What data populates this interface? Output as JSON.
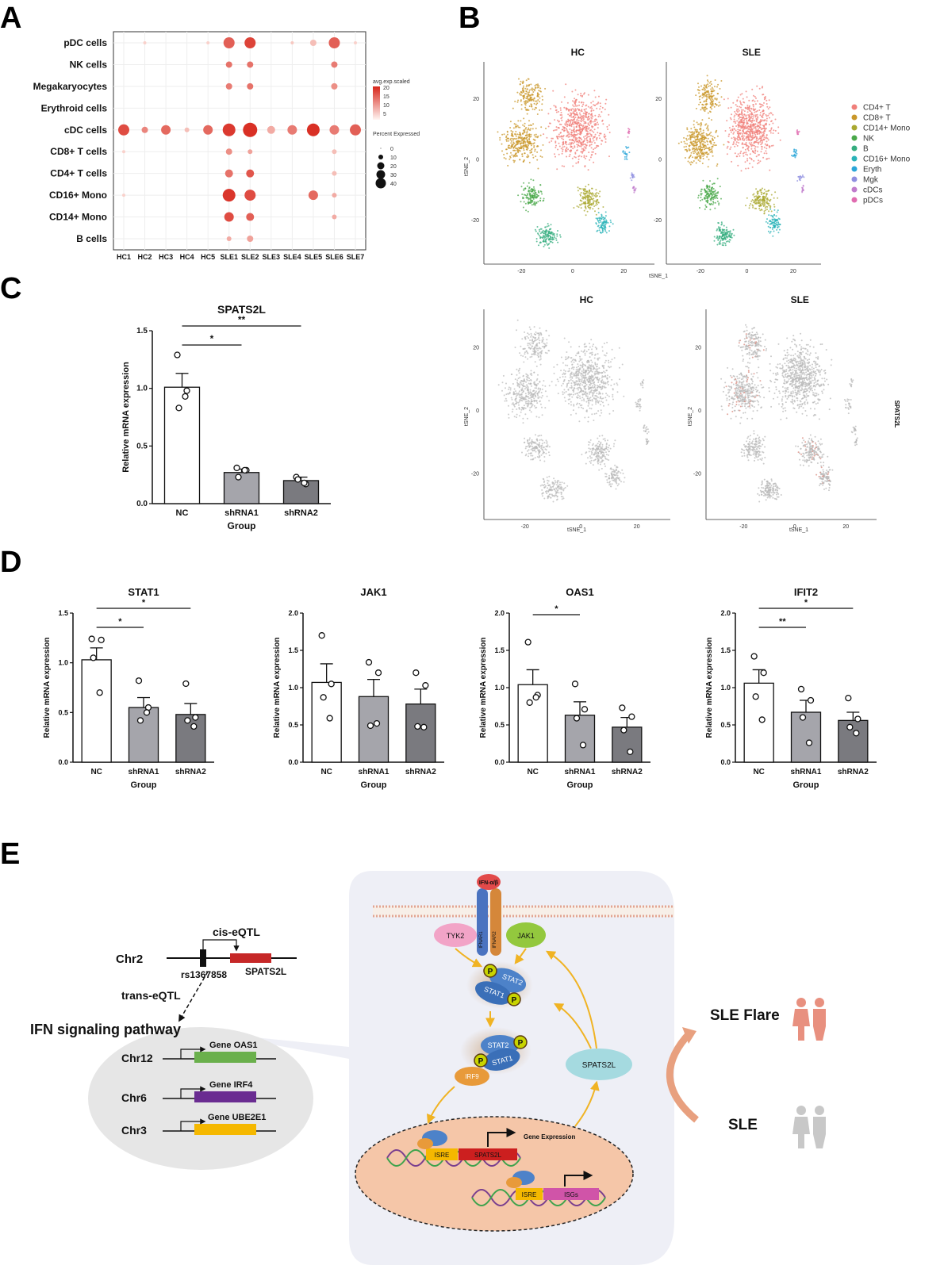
{
  "panels": {
    "a": "A",
    "b": "B",
    "c": "C",
    "d": "D",
    "e": "E"
  },
  "panelA": {
    "rows": [
      "pDC cells",
      "NK cells",
      "Megakaryocytes",
      "Erythroid cells",
      "cDC cells",
      "CD8+ T cells",
      "CD4+ T cells",
      "CD16+ Mono",
      "CD14+ Mono",
      "B cells"
    ],
    "cols": [
      "HC1",
      "HC2",
      "HC3",
      "HC4",
      "HC5",
      "SLE1",
      "SLE2",
      "SLE3",
      "SLE4",
      "SLE5",
      "SLE6",
      "SLE7"
    ],
    "legend_color_title": "avg.exp.scaled",
    "legend_color_ticks": [
      "20",
      "15",
      "10",
      "5"
    ],
    "legend_size_title": "Percent Expressed",
    "legend_size_ticks": [
      "0",
      "10",
      "20",
      "30",
      "40"
    ],
    "colors": {
      "low": "#fde4de",
      "high": "#d7261b"
    }
  },
  "panelB": {
    "top_titles": [
      "HC",
      "SLE"
    ],
    "bottom_titles": [
      "HC",
      "SLE"
    ],
    "xlabel": "tSNE_1",
    "ylabel": "tSNE_2",
    "xticks": [
      "-20",
      "0",
      "20"
    ],
    "yticks": [
      "20",
      "0",
      "-20"
    ],
    "gene_label": "SPATS2L",
    "legend": [
      {
        "name": "CD4+ T",
        "color": "#f07f7a"
      },
      {
        "name": "CD8+ T",
        "color": "#c9972a"
      },
      {
        "name": "CD14+ Mono",
        "color": "#a9a830"
      },
      {
        "name": "NK",
        "color": "#4aa84a"
      },
      {
        "name": "B",
        "color": "#35ad7f"
      },
      {
        "name": "CD16+ Mono",
        "color": "#2ab3b8"
      },
      {
        "name": "Eryth",
        "color": "#2aa6d8"
      },
      {
        "name": "Mgk",
        "color": "#8f8fe0"
      },
      {
        "name": "cDCs",
        "color": "#c07ccc"
      },
      {
        "name": "pDCs",
        "color": "#e06cb0"
      }
    ]
  },
  "panelE": {
    "chr2": "Chr2",
    "cis": "cis-eQTL",
    "snp": "rs1367858",
    "gene_main": "SPATS2L",
    "trans": "trans-eQTL",
    "pathway": "IFN signaling pathway",
    "genes": [
      {
        "chr": "Chr12",
        "gene": "Gene OAS1",
        "color": "#6ab04c"
      },
      {
        "chr": "Chr6",
        "gene": "Gene IRF4",
        "color": "#6a2c91"
      },
      {
        "chr": "Chr3",
        "gene": "Gene UBE2E1",
        "color": "#f5b800"
      }
    ],
    "ifn": "IFN-α/β",
    "ifnar1": "IFNAR1",
    "ifnar2": "IFNAR2",
    "tyk2": "TYK2",
    "jak1": "JAK1",
    "stat2": "STAT2",
    "stat1": "STAT1",
    "p": "P",
    "irf9": "IRF9",
    "spats2l": "SPATS2L",
    "gene_expression": "Gene Expression",
    "isre": "ISRE",
    "isgs": "ISGs",
    "sle_flare": "SLE Flare",
    "sle": "SLE"
  },
  "chart_data": [
    {
      "type": "bar",
      "title": "SPATS2L",
      "xlabel": "Group",
      "ylabel": "Relative mRNA expression",
      "ylim": [
        0,
        1.5
      ],
      "yticks": [
        "0.0",
        "0.5",
        "1.0",
        "1.5"
      ],
      "categories": [
        "NC",
        "shRNA1",
        "shRNA2"
      ],
      "values": [
        1.01,
        0.27,
        0.2
      ],
      "errors": [
        0.12,
        0.03,
        0.03
      ],
      "points": [
        [
          1.29,
          0.98,
          0.83,
          0.93
        ],
        [
          0.31,
          0.29,
          0.23,
          0.29
        ],
        [
          0.23,
          0.17,
          0.21,
          0.18
        ]
      ],
      "significance": [
        {
          "from": 0,
          "to": 1,
          "label": "*"
        },
        {
          "from": 0,
          "to": 2,
          "label": "**"
        }
      ]
    },
    {
      "type": "bar",
      "title": "STAT1",
      "xlabel": "Group",
      "ylabel": "Relative mRNA expression",
      "ylim": [
        0,
        1.5
      ],
      "yticks": [
        "0.0",
        "0.5",
        "1.0",
        "1.5"
      ],
      "categories": [
        "NC",
        "shRNA1",
        "shRNA2"
      ],
      "values": [
        1.03,
        0.55,
        0.48
      ],
      "errors": [
        0.12,
        0.1,
        0.11
      ],
      "points": [
        [
          1.24,
          1.23,
          1.05,
          0.7
        ],
        [
          0.82,
          0.55,
          0.42,
          0.5
        ],
        [
          0.79,
          0.45,
          0.42,
          0.36
        ]
      ],
      "significance": [
        {
          "from": 0,
          "to": 1,
          "label": "*"
        },
        {
          "from": 0,
          "to": 2,
          "label": "*"
        }
      ]
    },
    {
      "type": "bar",
      "title": "JAK1",
      "xlabel": "Group",
      "ylabel": "Relative mRNA expression",
      "ylim": [
        0,
        2.0
      ],
      "yticks": [
        "0.0",
        "0.5",
        "1.0",
        "1.5",
        "2.0"
      ],
      "categories": [
        "NC",
        "shRNA1",
        "shRNA2"
      ],
      "values": [
        1.07,
        0.88,
        0.78
      ],
      "errors": [
        0.25,
        0.23,
        0.2
      ],
      "points": [
        [
          1.7,
          1.05,
          0.87,
          0.59
        ],
        [
          1.34,
          1.2,
          0.49,
          0.52
        ],
        [
          1.2,
          1.03,
          0.48,
          0.47
        ]
      ],
      "significance": []
    },
    {
      "type": "bar",
      "title": "OAS1",
      "xlabel": "Group",
      "ylabel": "Relative mRNA expression",
      "ylim": [
        0,
        2.0
      ],
      "yticks": [
        "0.0",
        "0.5",
        "1.0",
        "1.5",
        "2.0"
      ],
      "categories": [
        "NC",
        "shRNA1",
        "shRNA2"
      ],
      "values": [
        1.04,
        0.63,
        0.47
      ],
      "errors": [
        0.2,
        0.18,
        0.13
      ],
      "points": [
        [
          1.61,
          0.9,
          0.8,
          0.87
        ],
        [
          1.05,
          0.71,
          0.59,
          0.23
        ],
        [
          0.73,
          0.61,
          0.43,
          0.14
        ]
      ],
      "significance": [
        {
          "from": 0,
          "to": 1,
          "label": "*"
        }
      ]
    },
    {
      "type": "bar",
      "title": "IFIT2",
      "xlabel": "Group",
      "ylabel": "Relative mRNA expression",
      "ylim": [
        0,
        2.0
      ],
      "yticks": [
        "0.0",
        "0.5",
        "1.0",
        "1.5",
        "2.0"
      ],
      "categories": [
        "NC",
        "shRNA1",
        "shRNA2"
      ],
      "values": [
        1.06,
        0.67,
        0.56
      ],
      "errors": [
        0.18,
        0.16,
        0.11
      ],
      "points": [
        [
          1.42,
          1.2,
          0.88,
          0.57
        ],
        [
          0.98,
          0.83,
          0.6,
          0.26
        ],
        [
          0.86,
          0.58,
          0.47,
          0.39
        ]
      ],
      "significance": [
        {
          "from": 0,
          "to": 1,
          "label": "**"
        },
        {
          "from": 0,
          "to": 2,
          "label": "*"
        }
      ]
    }
  ]
}
